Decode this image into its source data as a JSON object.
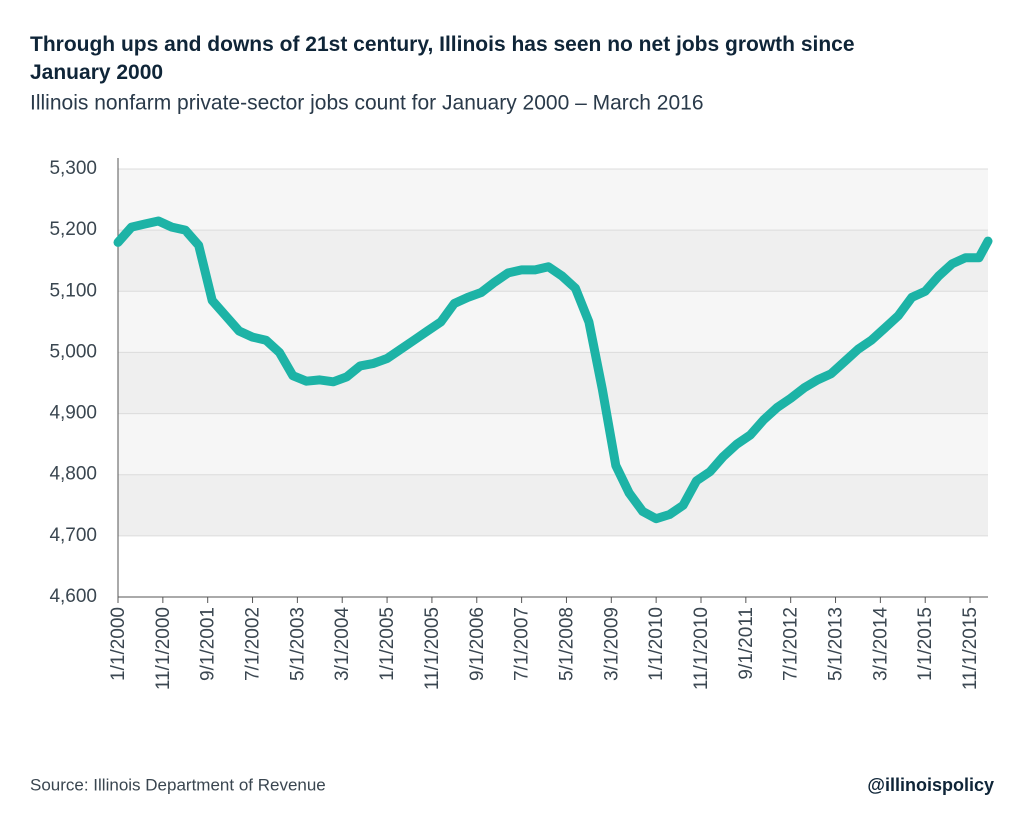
{
  "chart_data": {
    "type": "line",
    "title": "Through ups and downs of 21st century, Illinois has seen no net jobs growth since January 2000",
    "subtitle": "Illinois nonfarm private-sector jobs count for January 2000 – March 2016",
    "source": "Source: Illinois Department of Revenue",
    "credit": "@illinoispolicy",
    "x": [
      "1/1/2000",
      "4/1/2000",
      "7/1/2000",
      "10/1/2000",
      "1/1/2001",
      "4/1/2001",
      "7/1/2001",
      "10/1/2001",
      "1/1/2002",
      "4/1/2002",
      "7/1/2002",
      "10/1/2002",
      "1/1/2003",
      "4/1/2003",
      "7/1/2003",
      "10/1/2003",
      "1/1/2004",
      "4/1/2004",
      "7/1/2004",
      "10/1/2004",
      "1/1/2005",
      "4/1/2005",
      "7/1/2005",
      "10/1/2005",
      "1/1/2006",
      "4/1/2006",
      "7/1/2006",
      "10/1/2006",
      "1/1/2007",
      "4/1/2007",
      "7/1/2007",
      "10/1/2007",
      "1/1/2008",
      "4/1/2008",
      "7/1/2008",
      "10/1/2008",
      "1/1/2009",
      "4/1/2009",
      "7/1/2009",
      "10/1/2009",
      "1/1/2010",
      "4/1/2010",
      "7/1/2010",
      "10/1/2010",
      "1/1/2011",
      "4/1/2011",
      "7/1/2011",
      "10/1/2011",
      "1/1/2012",
      "4/1/2012",
      "7/1/2012",
      "10/1/2012",
      "1/1/2013",
      "4/1/2013",
      "7/1/2013",
      "10/1/2013",
      "1/1/2014",
      "4/1/2014",
      "7/1/2014",
      "10/1/2014",
      "1/1/2015",
      "4/1/2015",
      "7/1/2015",
      "10/1/2015",
      "1/1/2016",
      "3/1/2016"
    ],
    "series": [
      {
        "name": "Jobs",
        "color": "#1db3a6",
        "values": [
          5180,
          5205,
          5210,
          5215,
          5205,
          5200,
          5175,
          5085,
          5060,
          5035,
          5025,
          5020,
          5000,
          4962,
          4953,
          4955,
          4952,
          4960,
          4978,
          4982,
          4990,
          5005,
          5020,
          5035,
          5050,
          5080,
          5090,
          5098,
          5115,
          5130,
          5135,
          5135,
          5140,
          5125,
          5105,
          5050,
          4940,
          4815,
          4770,
          4740,
          4728,
          4735,
          4750,
          4790,
          4805,
          4830,
          4850,
          4865,
          4890,
          4910,
          4925,
          4942,
          4955,
          4965,
          4985,
          5005,
          5020,
          5040,
          5060,
          5090,
          5100,
          5125,
          5145,
          5155,
          5155,
          5182
        ]
      }
    ],
    "xlim": [
      "1/1/2000",
      "3/1/2016"
    ],
    "xticks": [
      "1/1/2000",
      "11/1/2000",
      "9/1/2001",
      "7/1/2002",
      "5/1/2003",
      "3/1/2004",
      "1/1/2005",
      "11/1/2005",
      "9/1/2006",
      "7/1/2007",
      "5/1/2008",
      "3/1/2009",
      "1/1/2010",
      "11/1/2010",
      "9/1/2011",
      "7/1/2012",
      "5/1/2013",
      "3/1/2014",
      "1/1/2015",
      "11/1/2015"
    ],
    "ylim": [
      4600,
      5300
    ],
    "yticks": [
      {
        "value": 4600,
        "label": "4,600"
      },
      {
        "value": 4700,
        "label": "4,700"
      },
      {
        "value": 4800,
        "label": "4,800"
      },
      {
        "value": 4900,
        "label": "4,900"
      },
      {
        "value": 5000,
        "label": "5,000"
      },
      {
        "value": 5100,
        "label": "5,100"
      },
      {
        "value": 5200,
        "label": "5,200"
      },
      {
        "value": 5300,
        "label": "5,300"
      }
    ],
    "grid": true
  }
}
